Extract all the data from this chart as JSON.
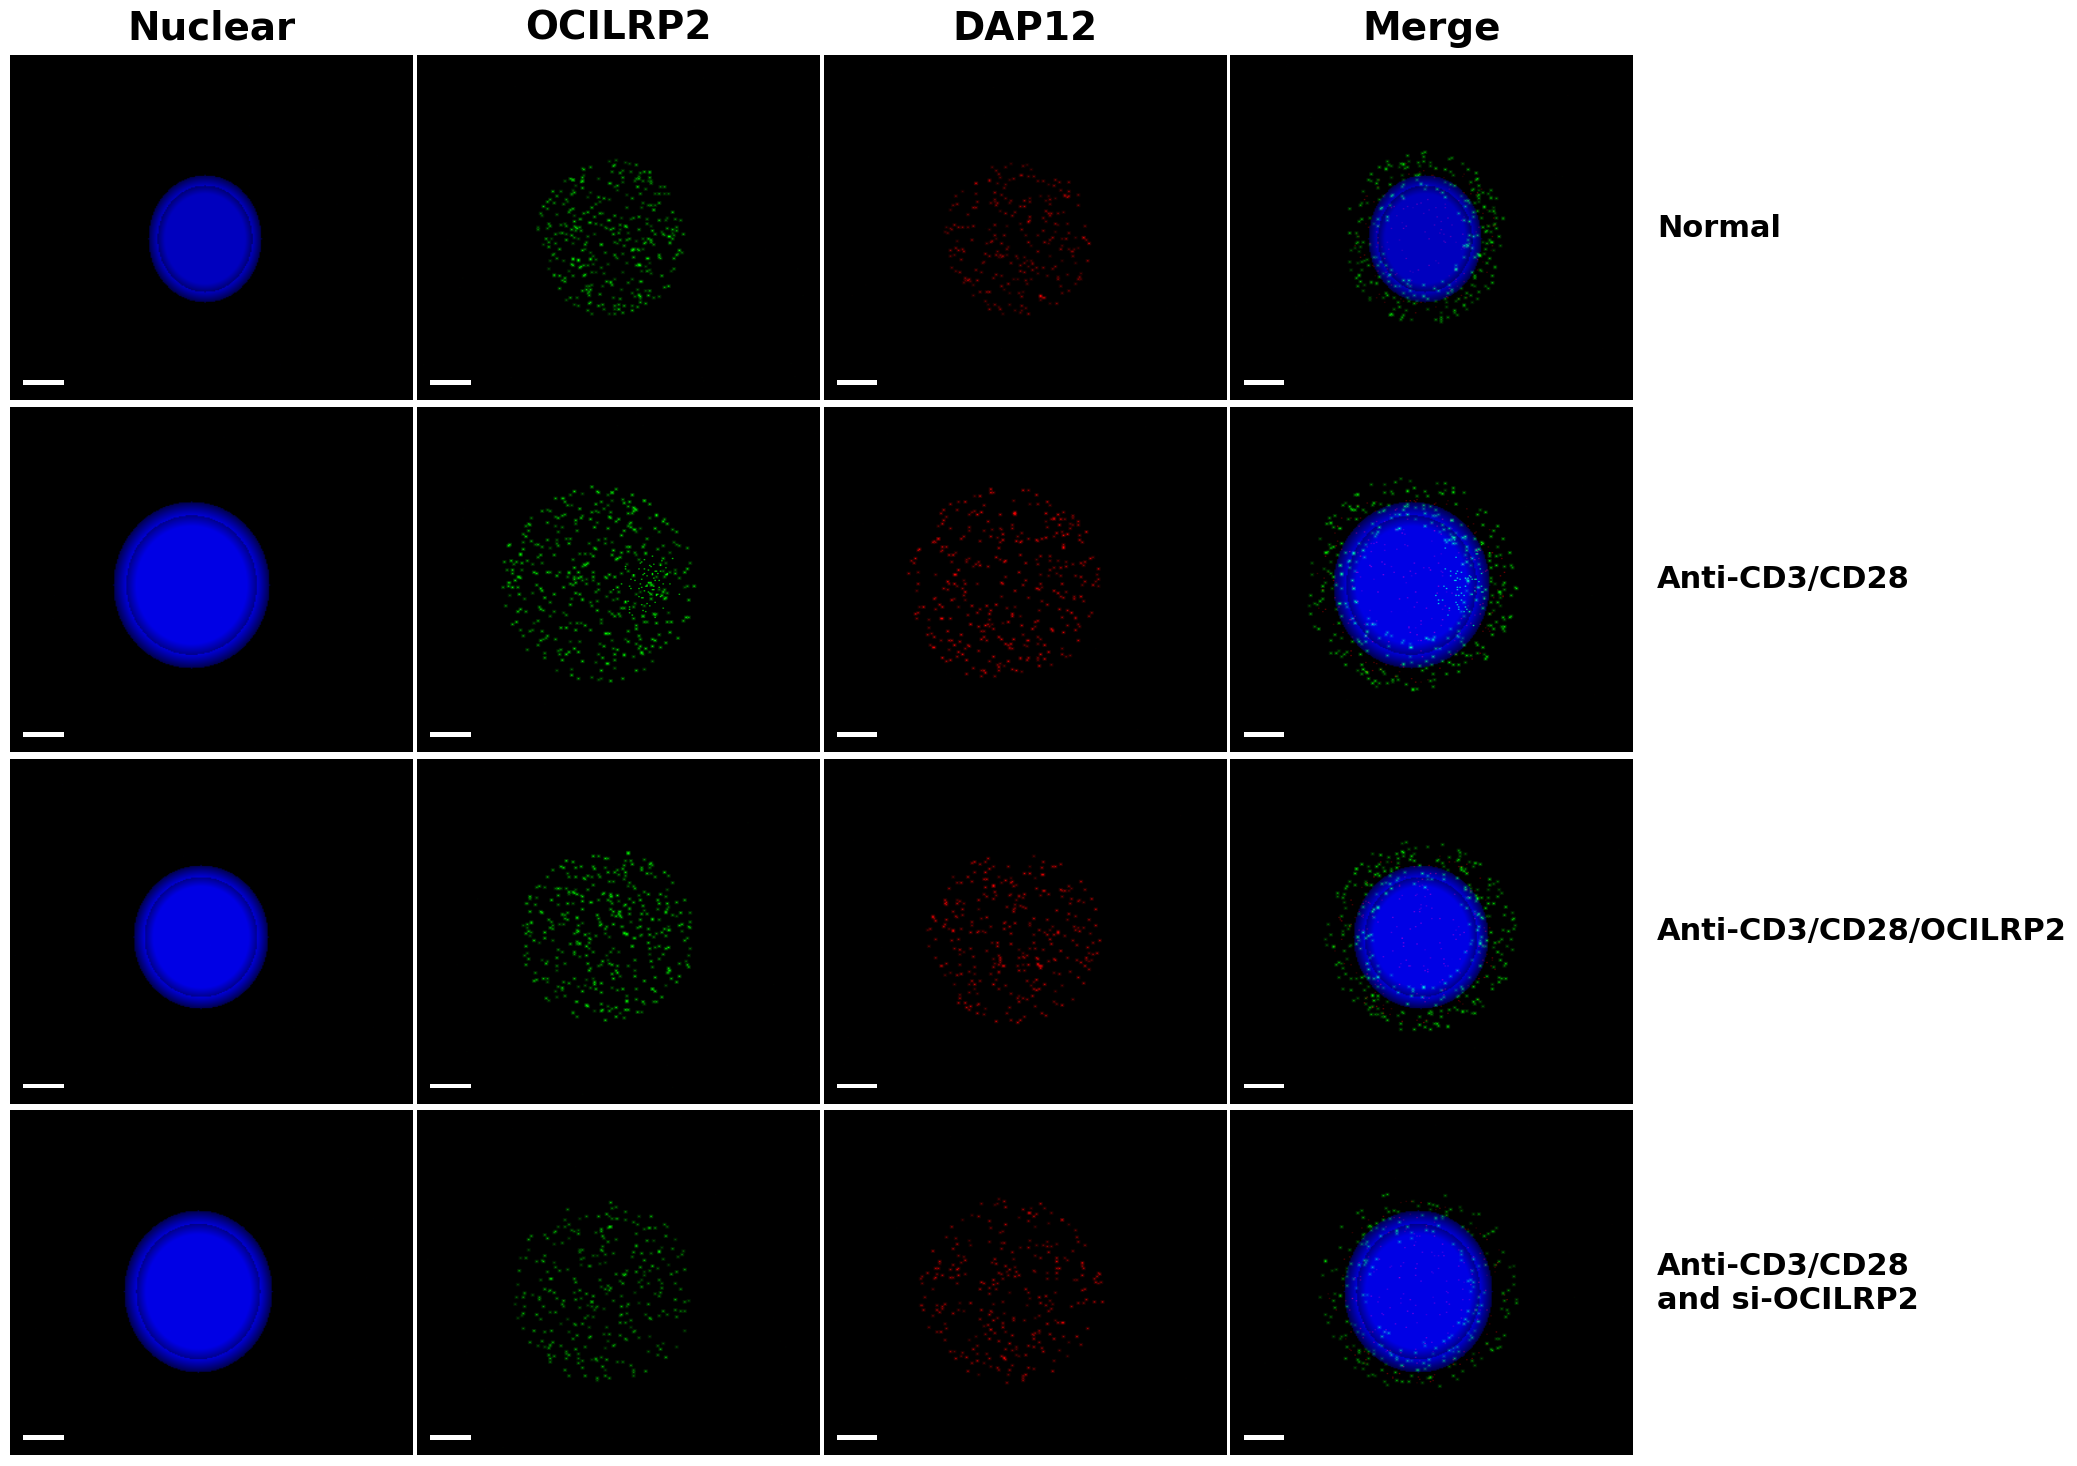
{
  "col_headers": [
    "Nuclear",
    "OCILRP2",
    "DAP12",
    "Merge"
  ],
  "row_labels": [
    "Normal",
    "Anti-CD3/CD28",
    "Anti-CD3/CD28/OCILRP2",
    "Anti-CD3/CD28\nand si-OCILRP2"
  ],
  "n_rows": 4,
  "n_cols": 4,
  "outer_bg": "#ffffff",
  "header_fontsize": 28,
  "label_fontsize": 22,
  "header_color": "#000000",
  "label_color": "#000000",
  "header_fontweight": "bold",
  "label_fontweight": "bold"
}
